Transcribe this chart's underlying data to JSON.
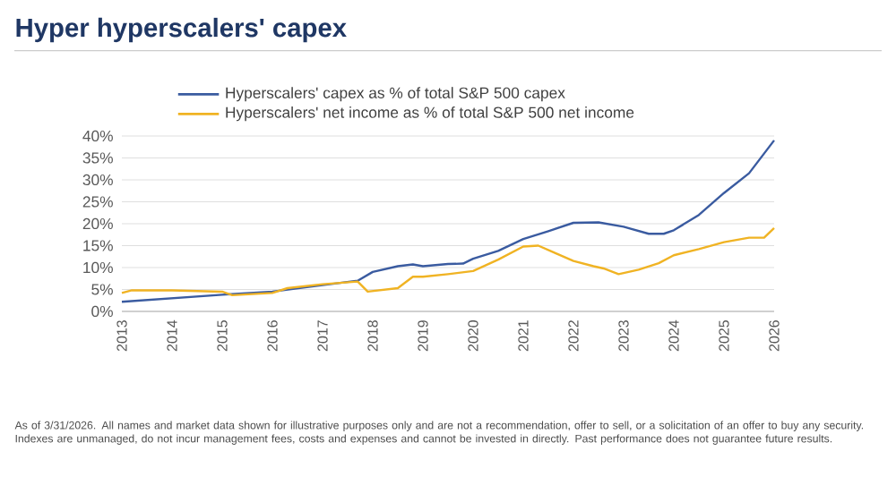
{
  "chart_data": {
    "type": "line",
    "title": "Hyper hyperscalers' capex",
    "x": [
      2013,
      2014,
      2015,
      2016,
      2017,
      2017.7,
      2018,
      2018.5,
      2018.8,
      2019,
      2019.5,
      2019.8,
      2020,
      2020.5,
      2021,
      2021.5,
      2022,
      2022.5,
      2023,
      2023.5,
      2023.8,
      2024,
      2024.5,
      2025,
      2025.5,
      2026
    ],
    "series": [
      {
        "name": "Hyperscalers' capex as % of total S&P 500 capex",
        "color": "#3a5ba0",
        "values": [
          2.2,
          3.0,
          3.8,
          4.5,
          6.0,
          7.0,
          9.0,
          10.3,
          10.7,
          10.3,
          10.8,
          10.9,
          12.0,
          13.8,
          16.5,
          18.3,
          20.2,
          20.3,
          19.3,
          17.7,
          17.7,
          18.5,
          22.0,
          27.0,
          31.5,
          39.0
        ]
      },
      {
        "name": "Hyperscalers' net income as % of total S&P 500 net income",
        "color": "#f0b323",
        "x": [
          2013,
          2013.2,
          2014,
          2015,
          2015.2,
          2016,
          2016.3,
          2017,
          2017.7,
          2017.9,
          2018.5,
          2018.8,
          2019,
          2019.5,
          2020,
          2020.5,
          2021,
          2021.3,
          2021.6,
          2022,
          2022.4,
          2022.6,
          2022.9,
          2023.3,
          2023.7,
          2024,
          2024.5,
          2025,
          2025.5,
          2025.8,
          2026
        ],
        "values": [
          4.2,
          4.8,
          4.8,
          4.5,
          3.7,
          4.2,
          5.3,
          6.2,
          6.8,
          4.5,
          5.3,
          7.9,
          7.9,
          8.5,
          9.2,
          11.8,
          14.8,
          15.0,
          13.5,
          11.5,
          10.3,
          9.8,
          8.5,
          9.5,
          11.0,
          12.8,
          14.2,
          15.8,
          16.8,
          16.8,
          19.0
        ]
      }
    ],
    "xlim": [
      2013,
      2026
    ],
    "xticks": [
      2013,
      2014,
      2015,
      2016,
      2017,
      2018,
      2019,
      2020,
      2021,
      2022,
      2023,
      2024,
      2025,
      2026
    ],
    "ylim": [
      0,
      40
    ],
    "yticks": [
      {
        "value": 0,
        "label": "0%"
      },
      {
        "value": 5,
        "label": "5%"
      },
      {
        "value": 10,
        "label": "10%"
      },
      {
        "value": 15,
        "label": "15%"
      },
      {
        "value": 20,
        "label": "20%"
      },
      {
        "value": 25,
        "label": "25%"
      },
      {
        "value": 30,
        "label": "30%"
      },
      {
        "value": 35,
        "label": "35%"
      },
      {
        "value": 40,
        "label": "40%"
      }
    ],
    "grid": "y",
    "legend": "top left",
    "line_style": "solid",
    "annotations": [
      "As of 3/31/2026. All names and market data shown for illustrative purposes only and are not a recommendation, offer to sell, or a solicitation of an offer to buy any security. Indexes are unmanaged, do not incur management fees, costs and expenses and cannot be invested in directly. Past performance does not guarantee future results."
    ]
  }
}
